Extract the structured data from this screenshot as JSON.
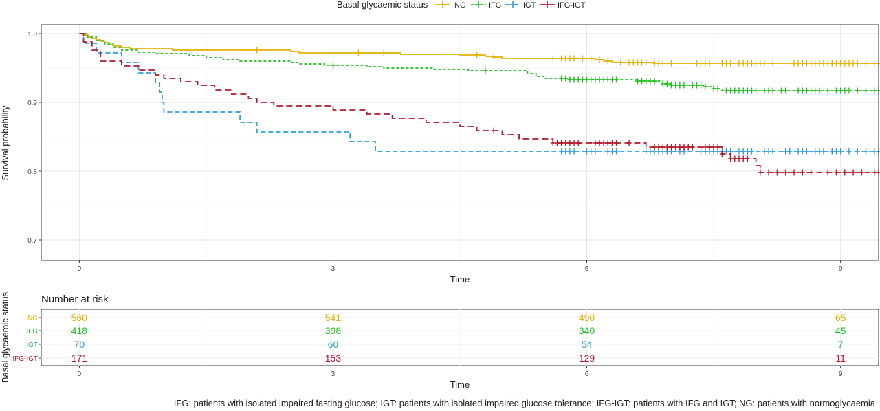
{
  "legend": {
    "title": "Basal glycaemic status",
    "entries": [
      "NG",
      "IFG",
      "IGT",
      "IFG-IGT"
    ]
  },
  "colors": {
    "NG": "#e6b000",
    "IFG": "#1fbf1f",
    "IGT": "#2e9fd9",
    "IFG-IGT": "#b2182b"
  },
  "chart_data": {
    "type": "line",
    "subtype": "kaplan-meier-step",
    "xlabel": "Time",
    "ylabel": "Survival probability",
    "xlim": [
      -0.45,
      9.45
    ],
    "ylim": [
      0.67,
      1.013
    ],
    "xticks": [
      "0",
      "3",
      "6",
      "9"
    ],
    "yticks": [
      "0.7",
      "0.8",
      "0.9",
      "1.0"
    ],
    "grid": true,
    "legend_position": "top",
    "series": [
      {
        "name": "NG",
        "color": "#e6b000",
        "dash": "solid",
        "steps": [
          [
            0,
            1.0
          ],
          [
            0.05,
            0.998
          ],
          [
            0.1,
            0.995
          ],
          [
            0.15,
            0.993
          ],
          [
            0.2,
            0.991
          ],
          [
            0.25,
            0.989
          ],
          [
            0.3,
            0.987
          ],
          [
            0.35,
            0.984
          ],
          [
            0.4,
            0.982
          ],
          [
            0.5,
            0.98
          ],
          [
            0.6,
            0.978
          ],
          [
            1.1,
            0.976
          ],
          [
            2.5,
            0.974
          ],
          [
            2.6,
            0.972
          ],
          [
            3.8,
            0.97
          ],
          [
            4.5,
            0.969
          ],
          [
            4.8,
            0.967
          ],
          [
            4.9,
            0.966
          ],
          [
            5.0,
            0.964
          ],
          [
            6.1,
            0.962
          ],
          [
            6.2,
            0.96
          ],
          [
            6.3,
            0.958
          ],
          [
            6.8,
            0.957
          ],
          [
            9.45,
            0.957
          ]
        ],
        "censor_marks": [
          2.1,
          3.3,
          3.6,
          4.7,
          4.9,
          5.6,
          5.7,
          5.75,
          5.8,
          5.85,
          5.95,
          6.05,
          6.15,
          6.25,
          6.4,
          6.5,
          6.55,
          6.6,
          6.65,
          6.7,
          6.8,
          6.85,
          6.9,
          7.0,
          7.3,
          7.35,
          7.4,
          7.45,
          7.6,
          7.65,
          7.7,
          7.8,
          7.85,
          7.9,
          7.95,
          8.0,
          8.05,
          8.1,
          8.2,
          8.45,
          8.5,
          8.55,
          8.6,
          8.65,
          8.7,
          8.75,
          8.8,
          8.85,
          8.9,
          8.95,
          9.0,
          9.05,
          9.1,
          9.15,
          9.2,
          9.3,
          9.4,
          9.45
        ]
      },
      {
        "name": "IFG",
        "color": "#1fbf1f",
        "dash": "4,3",
        "steps": [
          [
            0,
            1.0
          ],
          [
            0.1,
            0.995
          ],
          [
            0.2,
            0.99
          ],
          [
            0.3,
            0.985
          ],
          [
            0.4,
            0.98
          ],
          [
            0.5,
            0.976
          ],
          [
            0.7,
            0.973
          ],
          [
            0.9,
            0.971
          ],
          [
            1.3,
            0.968
          ],
          [
            1.5,
            0.965
          ],
          [
            1.7,
            0.962
          ],
          [
            1.9,
            0.96
          ],
          [
            2.5,
            0.958
          ],
          [
            2.6,
            0.956
          ],
          [
            2.9,
            0.954
          ],
          [
            3.4,
            0.952
          ],
          [
            3.6,
            0.95
          ],
          [
            4.2,
            0.948
          ],
          [
            4.6,
            0.946
          ],
          [
            5.3,
            0.942
          ],
          [
            5.4,
            0.938
          ],
          [
            5.5,
            0.935
          ],
          [
            5.8,
            0.933
          ],
          [
            6.6,
            0.931
          ],
          [
            6.9,
            0.927
          ],
          [
            7.0,
            0.925
          ],
          [
            7.4,
            0.923
          ],
          [
            7.5,
            0.92
          ],
          [
            7.6,
            0.917
          ],
          [
            9.45,
            0.917
          ]
        ],
        "censor_marks": [
          3.0,
          4.8,
          5.7,
          5.75,
          5.8,
          5.85,
          5.9,
          5.95,
          6.0,
          6.05,
          6.1,
          6.15,
          6.2,
          6.25,
          6.3,
          6.35,
          6.6,
          6.65,
          6.7,
          6.75,
          6.8,
          6.9,
          6.95,
          7.0,
          7.05,
          7.1,
          7.15,
          7.25,
          7.3,
          7.35,
          7.4,
          7.5,
          7.55,
          7.65,
          7.7,
          7.75,
          7.8,
          7.85,
          7.9,
          7.95,
          8.0,
          8.1,
          8.15,
          8.2,
          8.3,
          8.35,
          8.5,
          8.55,
          8.6,
          8.65,
          8.7,
          8.75,
          8.85,
          8.95,
          9.0,
          9.05,
          9.1,
          9.2,
          9.3,
          9.4,
          9.45
        ]
      },
      {
        "name": "IGT",
        "color": "#2e9fd9",
        "dash": "7,4",
        "steps": [
          [
            0,
            1.0
          ],
          [
            0.05,
            0.986
          ],
          [
            0.2,
            0.972
          ],
          [
            0.5,
            0.958
          ],
          [
            0.7,
            0.943
          ],
          [
            0.9,
            0.929
          ],
          [
            0.95,
            0.915
          ],
          [
            0.98,
            0.9
          ],
          [
            1.0,
            0.886
          ],
          [
            1.9,
            0.871
          ],
          [
            2.1,
            0.857
          ],
          [
            3.2,
            0.843
          ],
          [
            3.5,
            0.829
          ],
          [
            9.45,
            0.829
          ]
        ],
        "censor_marks": [
          5.7,
          5.75,
          5.8,
          5.85,
          6.0,
          6.05,
          6.1,
          6.25,
          6.3,
          6.35,
          6.7,
          6.75,
          6.8,
          6.85,
          6.9,
          6.95,
          7.0,
          7.1,
          7.15,
          7.35,
          7.4,
          7.45,
          7.5,
          7.55,
          7.6,
          7.65,
          7.7,
          7.8,
          7.85,
          7.9,
          7.95,
          8.1,
          8.15,
          8.2,
          8.35,
          8.4,
          8.5,
          8.55,
          8.6,
          8.7,
          8.75,
          8.8,
          8.9,
          8.95,
          9.0,
          9.1,
          9.2,
          9.3,
          9.4,
          9.45
        ]
      },
      {
        "name": "IFG-IGT",
        "color": "#b2182b",
        "dash": "9,5",
        "steps": [
          [
            0,
            1.0
          ],
          [
            0.05,
            0.988
          ],
          [
            0.15,
            0.976
          ],
          [
            0.25,
            0.96
          ],
          [
            0.5,
            0.953
          ],
          [
            0.7,
            0.947
          ],
          [
            0.9,
            0.94
          ],
          [
            1.0,
            0.935
          ],
          [
            1.2,
            0.93
          ],
          [
            1.4,
            0.925
          ],
          [
            1.6,
            0.918
          ],
          [
            1.8,
            0.912
          ],
          [
            2.0,
            0.906
          ],
          [
            2.1,
            0.9
          ],
          [
            2.3,
            0.895
          ],
          [
            3.0,
            0.889
          ],
          [
            3.4,
            0.883
          ],
          [
            3.7,
            0.877
          ],
          [
            4.1,
            0.871
          ],
          [
            4.5,
            0.865
          ],
          [
            4.7,
            0.859
          ],
          [
            5.0,
            0.853
          ],
          [
            5.2,
            0.847
          ],
          [
            5.6,
            0.841
          ],
          [
            6.7,
            0.835
          ],
          [
            7.6,
            0.825
          ],
          [
            7.7,
            0.818
          ],
          [
            8.0,
            0.808
          ],
          [
            8.05,
            0.798
          ],
          [
            9.45,
            0.798
          ]
        ],
        "censor_marks": [
          4.9,
          5.6,
          5.65,
          5.7,
          5.75,
          5.8,
          5.85,
          5.9,
          6.1,
          6.15,
          6.2,
          6.25,
          6.3,
          6.35,
          6.5,
          6.8,
          6.85,
          6.9,
          6.95,
          7.0,
          7.05,
          7.1,
          7.15,
          7.2,
          7.25,
          7.4,
          7.45,
          7.5,
          7.55,
          7.6,
          7.7,
          7.75,
          7.8,
          7.85,
          7.9,
          8.05,
          8.15,
          8.25,
          8.35,
          8.45,
          8.55,
          8.65,
          8.85,
          8.95,
          9.05,
          9.15,
          9.25,
          9.4,
          9.45
        ]
      }
    ]
  },
  "risk_table": {
    "title": "Number at risk",
    "ylabel": "Basal glycaemic status",
    "xlabel": "Time",
    "times": [
      0,
      3,
      6,
      9
    ],
    "rows": [
      {
        "group": "NG",
        "values": [
          "560",
          "541",
          "490",
          "65"
        ]
      },
      {
        "group": "IFG",
        "values": [
          "418",
          "398",
          "340",
          "45"
        ]
      },
      {
        "group": "IGT",
        "values": [
          "70",
          "60",
          "54",
          "7"
        ]
      },
      {
        "group": "IFG-IGT",
        "values": [
          "171",
          "153",
          "129",
          "11"
        ]
      }
    ]
  },
  "footnote": "IFG: patients with isolated impaired fasting glucose; IGT: patients with isolated impaired glucose tolerance; IFG-IGT: patients with IFG and IGT; NG: patients with  normoglycaemia"
}
